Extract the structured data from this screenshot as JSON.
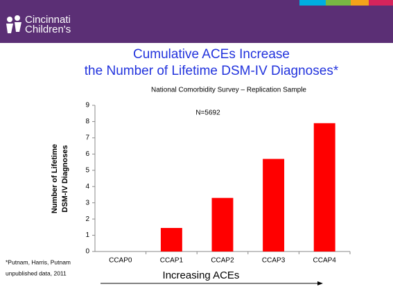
{
  "header": {
    "logo": [
      "Cincinnati",
      "Children's"
    ]
  },
  "chart_data": {
    "type": "bar",
    "title": [
      "Cumulative ACEs Increase",
      "the Number of Lifetime DSM-IV Diagnoses*"
    ],
    "subtitle": "National Comorbidity Survey – Replication Sample",
    "annotation": "N=5692",
    "ylabel": [
      "Number of Lifetime",
      "DSM-IV Diagnoses"
    ],
    "xlabel": "Increasing ACEs",
    "footnote": [
      "*Putnam, Harris, Putnam",
      "unpublished data, 2011"
    ],
    "categories": [
      "CCAP0",
      "CCAP1",
      "CCAP2",
      "CCAP3",
      "CCAP4"
    ],
    "values": [
      0,
      1.45,
      3.3,
      5.7,
      7.9
    ],
    "color": "#ff0000",
    "ylim": [
      0,
      9
    ],
    "yticks": [
      0,
      1,
      2,
      3,
      4,
      5,
      6,
      7,
      8,
      9
    ],
    "grid": false
  }
}
